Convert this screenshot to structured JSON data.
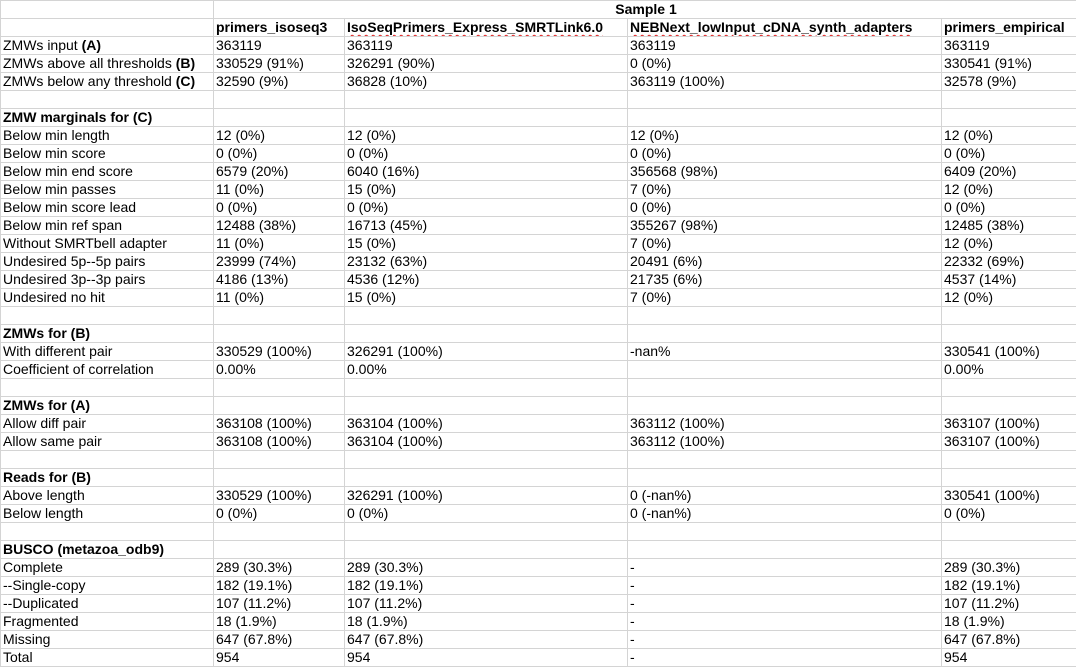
{
  "sheet": {
    "sample_label": "Sample 1",
    "columns": [
      "primers_isoseq3",
      "IsoSeqPrimers_Express_SMRTLink6.0",
      "NEBNext_lowInput_cDNA_synth_adapters",
      "primers_empirical"
    ],
    "sections": [
      {
        "header": "",
        "rows": [
          {
            "label": "ZMWs input ",
            "marker": "(A)",
            "values": [
              "363119",
              "363119",
              "363119",
              "363119"
            ]
          },
          {
            "label": "ZMWs above all thresholds ",
            "marker": "(B)",
            "values": [
              "330529 (91%)",
              "326291 (90%)",
              "0 (0%)",
              "330541 (91%)"
            ]
          },
          {
            "label": "ZMWs below any threshold ",
            "marker": "(C)",
            "values": [
              "32590 (9%)",
              "36828 (10%)",
              "363119 (100%)",
              "32578 (9%)"
            ]
          }
        ]
      },
      {
        "header": "ZMW marginals for (C)",
        "rows": [
          {
            "label": "Below min length",
            "values": [
              "12 (0%)",
              "12 (0%)",
              "12 (0%)",
              "12 (0%)"
            ]
          },
          {
            "label": "Below min score",
            "values": [
              "0 (0%)",
              "0 (0%)",
              "0 (0%)",
              "0 (0%)"
            ]
          },
          {
            "label": "Below min end score",
            "values": [
              "6579 (20%)",
              "6040 (16%)",
              "356568 (98%)",
              "6409 (20%)"
            ]
          },
          {
            "label": "Below min passes",
            "values": [
              "11 (0%)",
              "15 (0%)",
              "7 (0%)",
              "12 (0%)"
            ]
          },
          {
            "label": "Below min score lead",
            "values": [
              "0 (0%)",
              "0 (0%)",
              "0 (0%)",
              "0 (0%)"
            ]
          },
          {
            "label": "Below min ref span",
            "values": [
              "12488 (38%)",
              "16713 (45%)",
              "355267 (98%)",
              "12485 (38%)"
            ]
          },
          {
            "label": "Without SMRTbell adapter",
            "values": [
              "11 (0%)",
              "15 (0%)",
              "7 (0%)",
              "12 (0%)"
            ]
          },
          {
            "label": "Undesired 5p--5p pairs",
            "values": [
              "23999 (74%)",
              "23132 (63%)",
              "20491 (6%)",
              "22332 (69%)"
            ]
          },
          {
            "label": "Undesired 3p--3p pairs",
            "values": [
              "4186 (13%)",
              "4536 (12%)",
              "21735 (6%)",
              "4537 (14%)"
            ]
          },
          {
            "label": "Undesired no hit",
            "values": [
              "11 (0%)",
              "15 (0%)",
              "7 (0%)",
              "12 (0%)"
            ]
          }
        ]
      },
      {
        "header": "ZMWs for (B)",
        "rows": [
          {
            "label": "With different pair",
            "values": [
              "330529 (100%)",
              "326291 (100%)",
              "-nan%",
              "330541 (100%)"
            ]
          },
          {
            "label": "Coefficient of correlation",
            "values": [
              "0.00%",
              "0.00%",
              "",
              "0.00%"
            ]
          }
        ]
      },
      {
        "header": "ZMWs for (A)",
        "rows": [
          {
            "label": "Allow diff pair",
            "values": [
              "363108 (100%)",
              "363104 (100%)",
              "363112 (100%)",
              "363107 (100%)"
            ]
          },
          {
            "label": "Allow same pair",
            "values": [
              "363108 (100%)",
              "363104 (100%)",
              "363112 (100%)",
              "363107 (100%)"
            ]
          }
        ]
      },
      {
        "header": "Reads for (B)",
        "rows": [
          {
            "label": "Above length",
            "values": [
              "330529 (100%)",
              "326291 (100%)",
              "0 (-nan%)",
              "330541 (100%)"
            ]
          },
          {
            "label": "Below length",
            "values": [
              "0 (0%)",
              "0 (0%)",
              "0 (-nan%)",
              "0 (0%)"
            ]
          }
        ]
      },
      {
        "header": "BUSCO (metazoa_odb9)",
        "rows": [
          {
            "label": "Complete",
            "values": [
              "289 (30.3%)",
              "289 (30.3%)",
              "-",
              "289 (30.3%)"
            ]
          },
          {
            "label": "--Single-copy",
            "values": [
              "182 (19.1%)",
              "182 (19.1%)",
              "-",
              "182 (19.1%)"
            ]
          },
          {
            "label": "--Duplicated",
            "values": [
              "107 (11.2%)",
              "107 (11.2%)",
              "-",
              "107 (11.2%)"
            ]
          },
          {
            "label": "Fragmented",
            "values": [
              "18 (1.9%)",
              "18 (1.9%)",
              "-",
              "18 (1.9%)"
            ]
          },
          {
            "label": "Missing",
            "values": [
              "647 (67.8%)",
              "647 (67.8%)",
              "-",
              "647 (67.8%)"
            ]
          },
          {
            "label": "Total",
            "values": [
              "954",
              "954",
              "-",
              "954"
            ]
          }
        ]
      }
    ]
  }
}
